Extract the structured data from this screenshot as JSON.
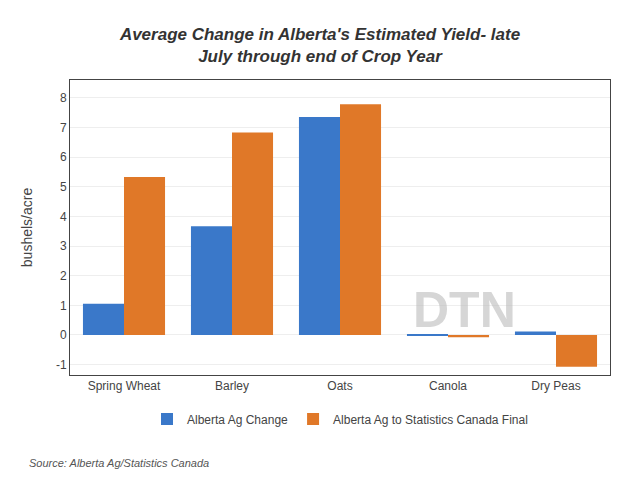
{
  "chart_data": {
    "type": "bar",
    "title": "Average Change in Alberta's Estimated Yield- late\nJuly through end of Crop Year",
    "categories": [
      "Spring Wheat",
      "Barley",
      "Oats",
      "Canola",
      "Dry Peas"
    ],
    "series": [
      {
        "name": "Alberta Ag Change",
        "color": "#3a78c9",
        "values": [
          1.05,
          3.67,
          7.35,
          -0.03,
          0.12
        ]
      },
      {
        "name": "Alberta Ag to Statistics Canada Final",
        "color": "#e07828",
        "values": [
          5.33,
          6.83,
          7.78,
          -0.08,
          -1.07
        ]
      }
    ],
    "ylabel": "bushels/acre",
    "ylim": [
      -1.35,
      8.6
    ],
    "yticks": [
      -1,
      0,
      1,
      2,
      3,
      4,
      5,
      6,
      7,
      8
    ],
    "grid": true,
    "legend": "bottom",
    "annotations": [
      {
        "text": "Source: Alberta Ag/Statistics Canada"
      },
      {
        "text": "DTN"
      }
    ]
  }
}
